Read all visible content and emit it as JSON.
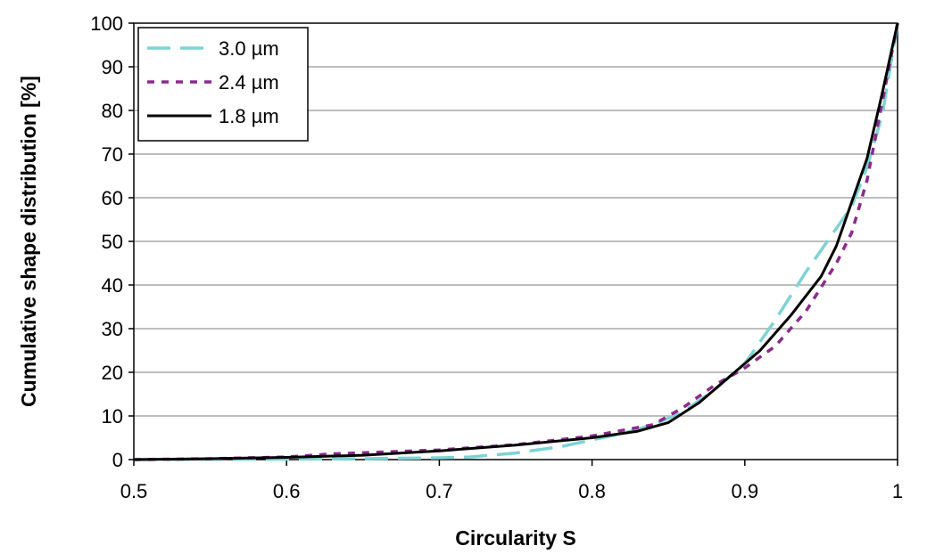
{
  "chart_data": {
    "type": "line",
    "title": "",
    "xlabel": "Circularity S",
    "ylabel": "Cumulative shape distribution [%]",
    "xlim": [
      0.5,
      1.0
    ],
    "ylim": [
      0,
      100
    ],
    "xticks": [
      0.5,
      0.6,
      0.7,
      0.8,
      0.9,
      1.0
    ],
    "xtick_labels": [
      "0.5",
      "0.6",
      "0.7",
      "0.8",
      "0.9",
      "1"
    ],
    "yticks": [
      0,
      10,
      20,
      30,
      40,
      50,
      60,
      70,
      80,
      90,
      100
    ],
    "ytick_labels": [
      "0",
      "10",
      "20",
      "30",
      "40",
      "50",
      "60",
      "70",
      "80",
      "90",
      "100"
    ],
    "grid": "horizontal",
    "legend_position": "top-left",
    "series": [
      {
        "name": "3.0 µm",
        "color": "#7fd3d3",
        "style": "dashed",
        "x": [
          0.5,
          0.6,
          0.65,
          0.7,
          0.72,
          0.75,
          0.78,
          0.8,
          0.82,
          0.84,
          0.86,
          0.88,
          0.9,
          0.92,
          0.94,
          0.96,
          0.97,
          0.98,
          0.99,
          1.0
        ],
        "y": [
          0.0,
          0.1,
          0.2,
          0.4,
          0.6,
          1.5,
          3.0,
          4.5,
          6.0,
          8.0,
          11.0,
          16.0,
          22.0,
          32.0,
          43.0,
          53.0,
          58.0,
          67.0,
          79.0,
          100.0
        ]
      },
      {
        "name": "2.4 µm",
        "color": "#8b2a8b",
        "style": "dotted",
        "x": [
          0.5,
          0.55,
          0.6,
          0.63,
          0.66,
          0.7,
          0.75,
          0.8,
          0.84,
          0.86,
          0.88,
          0.9,
          0.92,
          0.94,
          0.96,
          0.97,
          0.98,
          0.99,
          1.0
        ],
        "y": [
          0.0,
          0.2,
          0.6,
          1.3,
          1.7,
          2.2,
          3.4,
          5.4,
          8.0,
          12.0,
          17.0,
          21.0,
          26.0,
          34.0,
          45.0,
          52.0,
          64.0,
          82.0,
          100.0
        ]
      },
      {
        "name": "1.8 µm",
        "color": "#000000",
        "style": "solid",
        "x": [
          0.5,
          0.55,
          0.6,
          0.65,
          0.7,
          0.75,
          0.8,
          0.83,
          0.85,
          0.87,
          0.89,
          0.91,
          0.93,
          0.95,
          0.96,
          0.97,
          0.98,
          0.99,
          1.0
        ],
        "y": [
          0.0,
          0.2,
          0.5,
          1.0,
          2.0,
          3.3,
          5.0,
          6.5,
          8.5,
          13.0,
          19.0,
          25.0,
          33.0,
          42.0,
          49.0,
          59.0,
          69.0,
          84.0,
          100.0
        ]
      }
    ]
  }
}
